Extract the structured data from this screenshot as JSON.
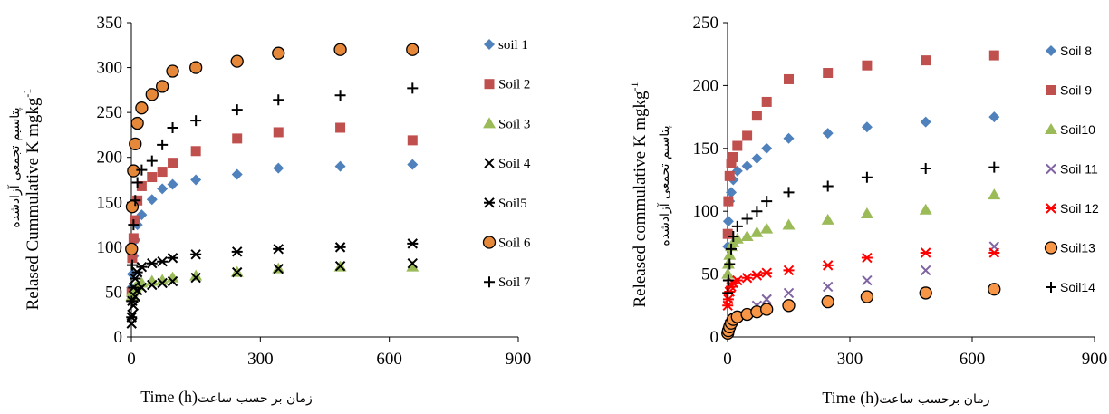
{
  "chart_data": [
    {
      "type": "scatter",
      "xlabel": "Time (h)",
      "xlabel_fa": "زمان بر حسب ساعت",
      "ylabel": "Relased Cummulative K mgkg",
      "ylabel_sup": "-1",
      "ylabel_fa": "پتاسیم تجمعی آزادشده",
      "xlim": [
        0,
        900
      ],
      "ylim": [
        0,
        350
      ],
      "xticks": [
        "0",
        "300",
        "600",
        "900"
      ],
      "yticks": [
        "0",
        "50",
        "100",
        "150",
        "200",
        "250",
        "300",
        "350"
      ],
      "legend_position": "right",
      "series": [
        {
          "name": "soil 1",
          "marker": "diamond",
          "color": "#4F81BD",
          "x": [
            0.5,
            2,
            5,
            9,
            14,
            24,
            48,
            72,
            96,
            150,
            246,
            342,
            486,
            654
          ],
          "y": [
            55,
            70,
            90,
            108,
            125,
            136,
            153,
            165,
            170,
            175,
            181,
            188,
            190,
            192
          ]
        },
        {
          "name": "Soil 2",
          "marker": "square",
          "color": "#C0504D",
          "x": [
            0.5,
            2,
            5,
            9,
            14,
            24,
            48,
            72,
            96,
            150,
            246,
            342,
            486,
            654
          ],
          "y": [
            50,
            88,
            110,
            130,
            152,
            168,
            178,
            184,
            194,
            207,
            221,
            228,
            233,
            219
          ]
        },
        {
          "name": "Soil 3",
          "marker": "triangle",
          "color": "#9BBB59",
          "x": [
            0.5,
            2,
            5,
            9,
            14,
            24,
            48,
            72,
            96,
            150,
            246,
            342,
            486,
            654
          ],
          "y": [
            45,
            50,
            52,
            55,
            57,
            60,
            62,
            63,
            66,
            68,
            72,
            76,
            78,
            78
          ]
        },
        {
          "name": "Soil 4",
          "marker": "x",
          "color": "#000000",
          "x": [
            0.5,
            2,
            5,
            9,
            14,
            24,
            48,
            72,
            96,
            150,
            246,
            342,
            486,
            654
          ],
          "y": [
            15,
            25,
            35,
            45,
            52,
            55,
            58,
            60,
            62,
            66,
            72,
            76,
            79,
            82
          ]
        },
        {
          "name": "Soil5",
          "marker": "asterisk",
          "color": "#000000",
          "x": [
            0.5,
            2,
            5,
            9,
            14,
            24,
            48,
            72,
            96,
            150,
            246,
            342,
            486,
            654
          ],
          "y": [
            22,
            40,
            55,
            65,
            72,
            78,
            82,
            84,
            88,
            92,
            95,
            98,
            100,
            104
          ]
        },
        {
          "name": "Soil 6",
          "marker": "circle",
          "color": "#E6883A",
          "x": [
            0.5,
            2,
            5,
            9,
            14,
            24,
            48,
            72,
            96,
            150,
            246,
            342,
            486,
            654
          ],
          "y": [
            98,
            145,
            185,
            215,
            238,
            255,
            270,
            279,
            296,
            300,
            307,
            316,
            320,
            320
          ]
        },
        {
          "name": "Soil 7",
          "marker": "plus",
          "color": "#000000",
          "x": [
            0.5,
            2,
            5,
            9,
            14,
            24,
            48,
            72,
            96,
            150,
            246,
            342,
            486,
            654
          ],
          "y": [
            40,
            80,
            125,
            152,
            172,
            186,
            196,
            214,
            233,
            241,
            253,
            264,
            269,
            277
          ]
        }
      ]
    },
    {
      "type": "scatter",
      "xlabel": "Time (h)",
      "xlabel_fa": "زمان برحسب ساعت",
      "ylabel": "Released commulative K mgkg",
      "ylabel_sup": "-1",
      "ylabel_fa": "پتاسیم تجمعی آزادشده",
      "xlim": [
        0,
        900
      ],
      "ylim": [
        0,
        250
      ],
      "xticks": [
        "0",
        "300",
        "600",
        "900"
      ],
      "yticks": [
        "0",
        "50",
        "100",
        "150",
        "200",
        "250"
      ],
      "legend_position": "right",
      "series": [
        {
          "name": "Soil 8",
          "marker": "diamond",
          "color": "#4F81BD",
          "x": [
            0.5,
            2,
            5,
            9,
            14,
            24,
            48,
            72,
            96,
            150,
            246,
            342,
            486,
            654
          ],
          "y": [
            72,
            92,
            108,
            115,
            125,
            132,
            136,
            142,
            150,
            158,
            162,
            167,
            171,
            175
          ]
        },
        {
          "name": "Soil 9",
          "marker": "square",
          "color": "#C0504D",
          "x": [
            0.5,
            2,
            5,
            9,
            14,
            24,
            48,
            72,
            96,
            150,
            246,
            342,
            486,
            654
          ],
          "y": [
            82,
            108,
            128,
            138,
            143,
            152,
            160,
            176,
            187,
            205,
            210,
            216,
            220,
            224
          ]
        },
        {
          "name": "Soil10",
          "marker": "triangle",
          "color": "#9BBB59",
          "x": [
            0.5,
            2,
            5,
            9,
            14,
            24,
            48,
            72,
            96,
            150,
            246,
            342,
            486,
            654
          ],
          "y": [
            50,
            58,
            65,
            72,
            75,
            78,
            80,
            83,
            86,
            89,
            93,
            98,
            101,
            113
          ]
        },
        {
          "name": "Soil 11",
          "marker": "x",
          "color": "#8064A2",
          "x": [
            0.5,
            2,
            5,
            9,
            14,
            24,
            48,
            72,
            96,
            150,
            246,
            342,
            486,
            654
          ],
          "y": [
            5,
            8,
            10,
            12,
            14,
            16,
            18,
            25,
            30,
            35,
            40,
            45,
            53,
            72
          ]
        },
        {
          "name": "Soil 12",
          "marker": "asterisk",
          "color": "#FF0000",
          "x": [
            0.5,
            2,
            5,
            9,
            14,
            24,
            48,
            72,
            96,
            150,
            246,
            342,
            486,
            654
          ],
          "y": [
            25,
            30,
            36,
            40,
            43,
            45,
            47,
            49,
            51,
            53,
            57,
            63,
            67,
            67
          ]
        },
        {
          "name": "Soil13",
          "marker": "circle",
          "color": "#F79646",
          "x": [
            0.5,
            2,
            5,
            9,
            14,
            24,
            48,
            72,
            96,
            150,
            246,
            342,
            486,
            654
          ],
          "y": [
            3,
            5,
            8,
            11,
            14,
            16,
            18,
            20,
            22,
            25,
            28,
            32,
            35,
            38
          ]
        },
        {
          "name": "Soil14",
          "marker": "plus",
          "color": "#000000",
          "x": [
            0.5,
            2,
            5,
            9,
            14,
            24,
            48,
            72,
            96,
            150,
            246,
            342,
            486,
            654
          ],
          "y": [
            35,
            45,
            58,
            70,
            80,
            88,
            94,
            100,
            108,
            115,
            120,
            127,
            134,
            135
          ]
        }
      ]
    }
  ]
}
